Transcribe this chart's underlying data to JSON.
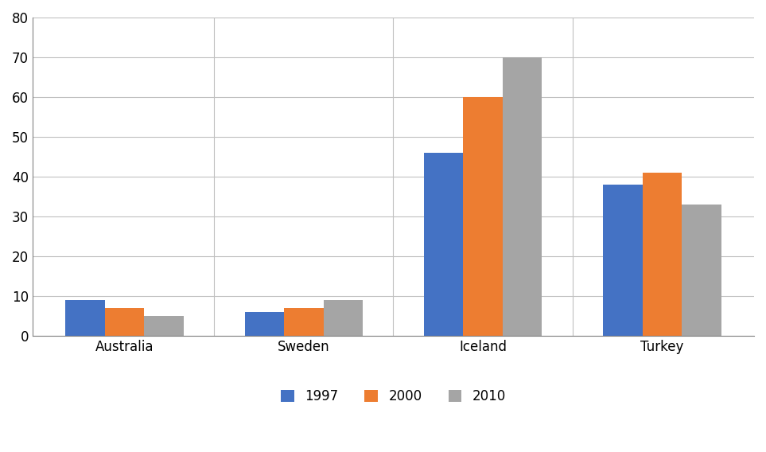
{
  "categories": [
    "Australia",
    "Sweden",
    "Iceland",
    "Turkey"
  ],
  "series": {
    "1997": [
      9,
      6,
      46,
      38
    ],
    "2000": [
      7,
      7,
      60,
      41
    ],
    "2010": [
      5,
      9,
      70,
      33
    ]
  },
  "series_colors": {
    "1997": "#4472C4",
    "2000": "#ED7D31",
    "2010": "#A5A5A5"
  },
  "series_order": [
    "1997",
    "2000",
    "2010"
  ],
  "ylim": [
    0,
    80
  ],
  "yticks": [
    0,
    10,
    20,
    30,
    40,
    50,
    60,
    70,
    80
  ],
  "background_color": "#FFFFFF",
  "bar_width": 0.22,
  "grid_color": "#C0C0C0",
  "tick_fontsize": 12,
  "legend_fontsize": 12,
  "axis_line_color": "#808080"
}
